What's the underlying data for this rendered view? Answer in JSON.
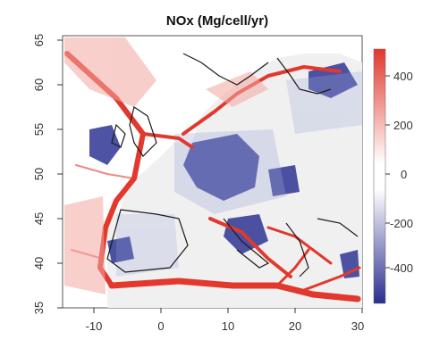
{
  "map": {
    "title": "NOx (Mg/cell/yr)",
    "x_ticks": [
      "-10",
      "0",
      "10",
      "20",
      "30"
    ],
    "y_ticks": [
      "35",
      "40",
      "45",
      "50",
      "55",
      "60",
      "65"
    ],
    "x_range": [
      -15,
      30
    ],
    "y_range": [
      35,
      65
    ],
    "colorbar": {
      "ticks": [
        "400",
        "200",
        "0",
        "-200",
        "-400"
      ],
      "range": [
        -550,
        550
      ],
      "positive_color": "#e2382d",
      "negative_color": "#2b2f8f",
      "zero_color": "#ffffff"
    }
  }
}
